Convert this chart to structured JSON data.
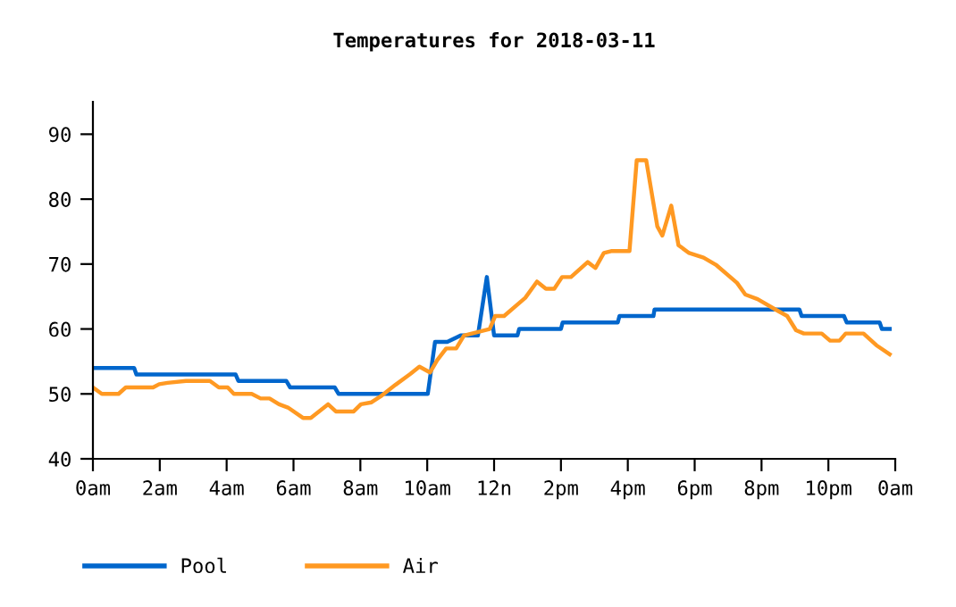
{
  "chart_data": {
    "type": "line",
    "title": "Temperatures for 2018-03-11",
    "xlim": [
      "2018-03-11T00:00",
      "2018-03-12T00:00"
    ],
    "ylim": [
      40,
      95
    ],
    "xticks": [
      {
        "value": "2018-03-11T00:00",
        "label": "0am"
      },
      {
        "value": "2018-03-11T02:00",
        "label": "2am"
      },
      {
        "value": "2018-03-11T04:00",
        "label": "4am"
      },
      {
        "value": "2018-03-11T06:00",
        "label": "6am"
      },
      {
        "value": "2018-03-11T08:00",
        "label": "8am"
      },
      {
        "value": "2018-03-11T10:00",
        "label": "10am"
      },
      {
        "value": "2018-03-11T12:00",
        "label": "12n"
      },
      {
        "value": "2018-03-11T14:00",
        "label": "2pm"
      },
      {
        "value": "2018-03-11T16:00",
        "label": "4pm"
      },
      {
        "value": "2018-03-11T18:00",
        "label": "6pm"
      },
      {
        "value": "2018-03-11T20:00",
        "label": "8pm"
      },
      {
        "value": "2018-03-11T22:00",
        "label": "10pm"
      },
      {
        "value": "2018-03-12T00:00",
        "label": "0am"
      }
    ],
    "yticks": [
      40,
      50,
      60,
      70,
      80,
      90
    ],
    "grid": false,
    "legend": "bottom",
    "marker": "none",
    "line_style": "solid",
    "series": [
      {
        "name": "Pool",
        "color": "#0066cc",
        "x": [
          "2018-03-11T00:00",
          "2018-03-11T01:14",
          "2018-03-11T01:18",
          "2018-03-11T04:16",
          "2018-03-11T04:21",
          "2018-03-11T05:47",
          "2018-03-11T05:54",
          "2018-03-11T07:14",
          "2018-03-11T07:21",
          "2018-03-11T10:01",
          "2018-03-11T10:14",
          "2018-03-11T10:36",
          "2018-03-11T11:00",
          "2018-03-11T11:31",
          "2018-03-11T11:47",
          "2018-03-11T12:00",
          "2018-03-11T12:42",
          "2018-03-11T12:45",
          "2018-03-11T14:00",
          "2018-03-11T14:03",
          "2018-03-11T15:42",
          "2018-03-11T15:45",
          "2018-03-11T16:46",
          "2018-03-11T16:48",
          "2018-03-11T21:08",
          "2018-03-11T21:12",
          "2018-03-11T22:28",
          "2018-03-11T22:33",
          "2018-03-11T23:32",
          "2018-03-11T23:36",
          "2018-03-11T23:50"
        ],
        "values": [
          54,
          54,
          53,
          53,
          52,
          52,
          51,
          51,
          50,
          50,
          58,
          58,
          59,
          59,
          68,
          59,
          59,
          60,
          60,
          61,
          61,
          62,
          62,
          63,
          63,
          62,
          62,
          61,
          61,
          60,
          60
        ]
      },
      {
        "name": "Air",
        "color": "#ff9922",
        "x": [
          "2018-03-11T00:00",
          "2018-03-11T00:16",
          "2018-03-11T00:46",
          "2018-03-11T00:59",
          "2018-03-11T01:48",
          "2018-03-11T01:59",
          "2018-03-11T02:14",
          "2018-03-11T02:47",
          "2018-03-11T03:30",
          "2018-03-11T03:46",
          "2018-03-11T04:02",
          "2018-03-11T04:13",
          "2018-03-11T04:45",
          "2018-03-11T05:01",
          "2018-03-11T05:17",
          "2018-03-11T05:34",
          "2018-03-11T05:50",
          "2018-03-11T06:17",
          "2018-03-11T06:31",
          "2018-03-11T07:02",
          "2018-03-11T07:16",
          "2018-03-11T07:48",
          "2018-03-11T08:01",
          "2018-03-11T08:20",
          "2018-03-11T08:36",
          "2018-03-11T09:03",
          "2018-03-11T09:30",
          "2018-03-11T09:46",
          "2018-03-11T10:05",
          "2018-03-11T10:18",
          "2018-03-11T10:34",
          "2018-03-11T10:52",
          "2018-03-11T11:06",
          "2018-03-11T11:52",
          "2018-03-11T12:02",
          "2018-03-11T12:18",
          "2018-03-11T12:56",
          "2018-03-11T13:17",
          "2018-03-11T13:33",
          "2018-03-11T13:48",
          "2018-03-11T14:02",
          "2018-03-11T14:18",
          "2018-03-11T14:48",
          "2018-03-11T15:02",
          "2018-03-11T15:17",
          "2018-03-11T15:30",
          "2018-03-11T16:03",
          "2018-03-11T16:16",
          "2018-03-11T16:33",
          "2018-03-11T16:53",
          "2018-03-11T17:02",
          "2018-03-11T17:18",
          "2018-03-11T17:31",
          "2018-03-11T17:50",
          "2018-03-11T18:16",
          "2018-03-11T18:38",
          "2018-03-11T19:16",
          "2018-03-11T19:31",
          "2018-03-11T19:53",
          "2018-03-11T20:25",
          "2018-03-11T20:46",
          "2018-03-11T21:02",
          "2018-03-11T21:16",
          "2018-03-11T21:48",
          "2018-03-11T22:03",
          "2018-03-11T22:20",
          "2018-03-11T22:31",
          "2018-03-11T23:03",
          "2018-03-11T23:26",
          "2018-03-11T23:50"
        ],
        "values": [
          51,
          50,
          50,
          51,
          51,
          51.5,
          51.7,
          52,
          52,
          51,
          51,
          50,
          50,
          49.3,
          49.3,
          48.4,
          47.9,
          46.3,
          46.3,
          48.4,
          47.3,
          47.3,
          48.4,
          48.7,
          49.6,
          51.4,
          53.1,
          54.2,
          53.3,
          55.2,
          57,
          57,
          59,
          60,
          62,
          62,
          64.8,
          67.3,
          66.2,
          66.2,
          68,
          68,
          70.3,
          69.4,
          71.7,
          72,
          72,
          86,
          86,
          75.8,
          74.4,
          79,
          72.9,
          71.7,
          71,
          69.9,
          67.1,
          65.3,
          64.6,
          63,
          62,
          59.8,
          59.3,
          59.3,
          58.2,
          58.2,
          59.3,
          59.3,
          57.5,
          56.1
        ]
      }
    ]
  }
}
